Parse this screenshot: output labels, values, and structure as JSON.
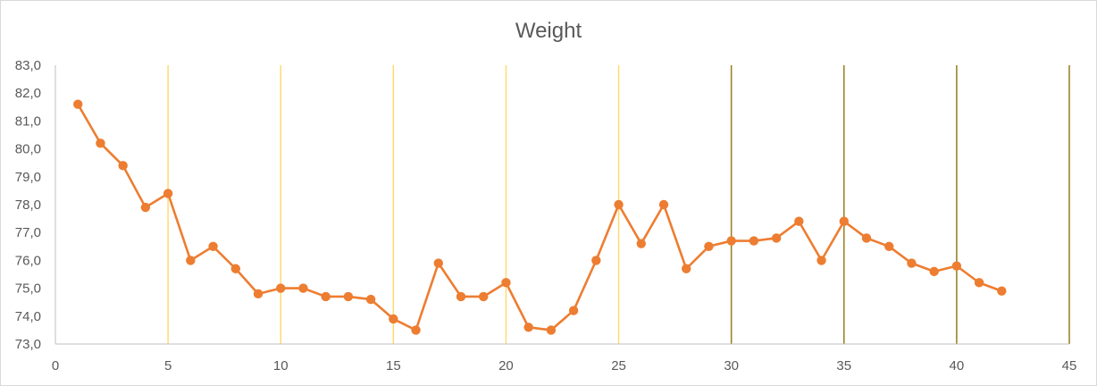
{
  "chart_data": {
    "type": "scatter",
    "title": "Weight",
    "xlabel": "",
    "ylabel": "",
    "xlim": [
      0,
      45
    ],
    "ylim": [
      73.0,
      83.0
    ],
    "x_ticks": [
      "0",
      "5",
      "10",
      "15",
      "20",
      "25",
      "30",
      "35",
      "40",
      "45"
    ],
    "y_ticks": [
      "73,0",
      "74,0",
      "75,0",
      "76,0",
      "77,0",
      "78,0",
      "79,0",
      "80,0",
      "81,0",
      "82,0",
      "83,0"
    ],
    "series": [
      {
        "color": "#ED7D31",
        "x": [
          1,
          2,
          3,
          4,
          5,
          6,
          7,
          8,
          9,
          10,
          11,
          12,
          13,
          14,
          15,
          16,
          17,
          18,
          19,
          20,
          21,
          22,
          23,
          24,
          25,
          26,
          27,
          28,
          29,
          30,
          31,
          32,
          33,
          34,
          35,
          36,
          37,
          38,
          39,
          40,
          41,
          42
        ],
        "y": [
          81.6,
          80.2,
          79.4,
          77.9,
          78.4,
          76.0,
          76.5,
          75.7,
          74.8,
          75.0,
          75.0,
          74.7,
          74.7,
          74.6,
          73.9,
          73.5,
          75.9,
          74.7,
          74.7,
          75.2,
          73.6,
          73.5,
          74.2,
          76.0,
          78.0,
          76.6,
          78.0,
          75.7,
          76.5,
          76.7,
          76.7,
          76.8,
          77.4,
          76.0,
          77.4,
          76.8,
          76.5,
          75.9,
          75.6,
          75.8,
          75.2,
          74.9
        ]
      }
    ],
    "gridlines": "vertical",
    "legend": "none",
    "colors": {
      "line": "#ED7D31",
      "grid": "#FFD966",
      "grid_dark": "#8B6E00",
      "axis": "#BFBFBF",
      "text": "#595959"
    }
  }
}
